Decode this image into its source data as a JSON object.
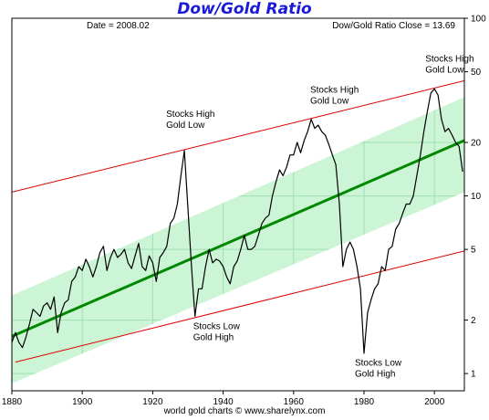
{
  "chart_data": {
    "type": "line",
    "title": "Dow/Gold Ratio",
    "xlabel": "",
    "ylabel": "",
    "x_ticks": [
      1880,
      1900,
      1920,
      1940,
      1960,
      1980,
      2000
    ],
    "y_ticks": [
      1,
      2,
      5,
      10,
      20,
      50,
      100
    ],
    "xlim": [
      1880,
      2008.5
    ],
    "ylim": [
      0.8,
      100
    ],
    "y_scale": "log",
    "grid": true,
    "legend": "none",
    "colors": {
      "background": "#ffffff",
      "band": "#ccf5d6",
      "grid": "#a0dfb4",
      "trend": "#008800",
      "channel": "#dd0000",
      "series": "#000000",
      "title": "#1a1ad8"
    },
    "info_left": "Date = 2008.02",
    "info_right": "Dow/Gold Ratio Close = 13.69",
    "annotations": [
      {
        "text": [
          "Stocks High",
          "Gold Low"
        ],
        "x": 1929,
        "y": 20
      },
      {
        "text": [
          "Stocks High",
          "Gold Low"
        ],
        "x": 1966,
        "y": 28
      },
      {
        "text": [
          "Stocks High",
          "Gold Low"
        ],
        "x": 2000,
        "y": 44
      },
      {
        "text": [
          "Stocks Low",
          "Gold High"
        ],
        "x": 1932,
        "y": 2.1
      },
      {
        "text": [
          "Stocks Low",
          "Gold High"
        ],
        "x": 1980,
        "y": 1.25
      }
    ],
    "trend_line": {
      "x": [
        1880,
        2008.5
      ],
      "y": [
        1.62,
        20.5
      ]
    },
    "upper_channel": {
      "x": [
        1880,
        2008.5
      ],
      "y": [
        10.5,
        44.5
      ]
    },
    "lower_channel": {
      "x": [
        1881,
        2008.5
      ],
      "y": [
        1.16,
        4.9
      ]
    },
    "band": {
      "x": [
        1880,
        2008.5
      ],
      "upper": [
        2.75,
        36
      ],
      "lower": [
        0.88,
        10.5
      ]
    },
    "series": [
      {
        "x": [
          1880,
          1881,
          1882,
          1883,
          1884,
          1885,
          1886,
          1887,
          1888,
          1889,
          1890,
          1891,
          1892,
          1893,
          1894,
          1895,
          1896,
          1897,
          1898,
          1899,
          1900,
          1901,
          1902,
          1903,
          1904,
          1905,
          1906,
          1907,
          1908,
          1909,
          1910,
          1911,
          1912,
          1913,
          1914,
          1915,
          1916,
          1917,
          1918,
          1919,
          1920,
          1921,
          1922,
          1923,
          1924,
          1925,
          1926,
          1927,
          1928,
          1929,
          1930,
          1931,
          1932,
          1933,
          1934,
          1935,
          1936,
          1937,
          1938,
          1939,
          1940,
          1941,
          1942,
          1943,
          1944,
          1945,
          1946,
          1947,
          1948,
          1949,
          1950,
          1951,
          1952,
          1953,
          1954,
          1955,
          1956,
          1957,
          1958,
          1959,
          1960,
          1961,
          1962,
          1963,
          1964,
          1965,
          1966,
          1967,
          1968,
          1969,
          1970,
          1971,
          1972,
          1973,
          1974,
          1975,
          1976,
          1977,
          1978,
          1979,
          1980,
          1981,
          1982,
          1983,
          1984,
          1985,
          1986,
          1987,
          1988,
          1989,
          1990,
          1991,
          1992,
          1993,
          1994,
          1995,
          1996,
          1997,
          1998,
          1999,
          2000,
          2001,
          2002,
          2003,
          2004,
          2005,
          2006,
          2007,
          2008
        ],
        "values": [
          1.5,
          1.7,
          1.5,
          1.4,
          1.6,
          1.9,
          2.3,
          2.2,
          2.1,
          2.4,
          2.5,
          2.3,
          2.7,
          1.7,
          2.2,
          2.5,
          2.6,
          3.3,
          3.5,
          4.0,
          3.8,
          4.4,
          4.0,
          3.5,
          4.0,
          4.8,
          5.2,
          3.8,
          4.5,
          5.0,
          4.5,
          4.7,
          5.0,
          4.2,
          3.9,
          4.6,
          5.4,
          4.0,
          3.8,
          4.6,
          4.2,
          3.3,
          4.5,
          4.8,
          5.2,
          7.0,
          7.5,
          9.0,
          13.0,
          18.0,
          8.5,
          4.0,
          2.1,
          3.0,
          3.0,
          4.0,
          5.0,
          4.2,
          4.4,
          4.3,
          4.0,
          3.5,
          3.2,
          4.0,
          4.3,
          5.0,
          6.0,
          5.0,
          5.0,
          5.2,
          6.0,
          7.0,
          7.5,
          7.8,
          10.0,
          12.0,
          14.0,
          13.0,
          14.5,
          17.0,
          17.0,
          20.0,
          17.5,
          20.5,
          23.0,
          27.0,
          24.0,
          25.0,
          23.0,
          22.0,
          19.5,
          17.0,
          15.0,
          9.0,
          4.0,
          5.0,
          5.5,
          5.0,
          4.0,
          3.0,
          1.3,
          2.2,
          2.6,
          3.0,
          3.2,
          4.0,
          3.8,
          5.0,
          5.2,
          6.5,
          7.0,
          8.0,
          9.0,
          9.0,
          10.0,
          13.0,
          17.0,
          23.0,
          30.0,
          38.0,
          40.0,
          37.0,
          27.0,
          23.0,
          24.0,
          22.0,
          20.0,
          19.0,
          13.69
        ]
      }
    ]
  },
  "footer": {
    "credit": "world gold charts © www.sharelynx.com"
  }
}
